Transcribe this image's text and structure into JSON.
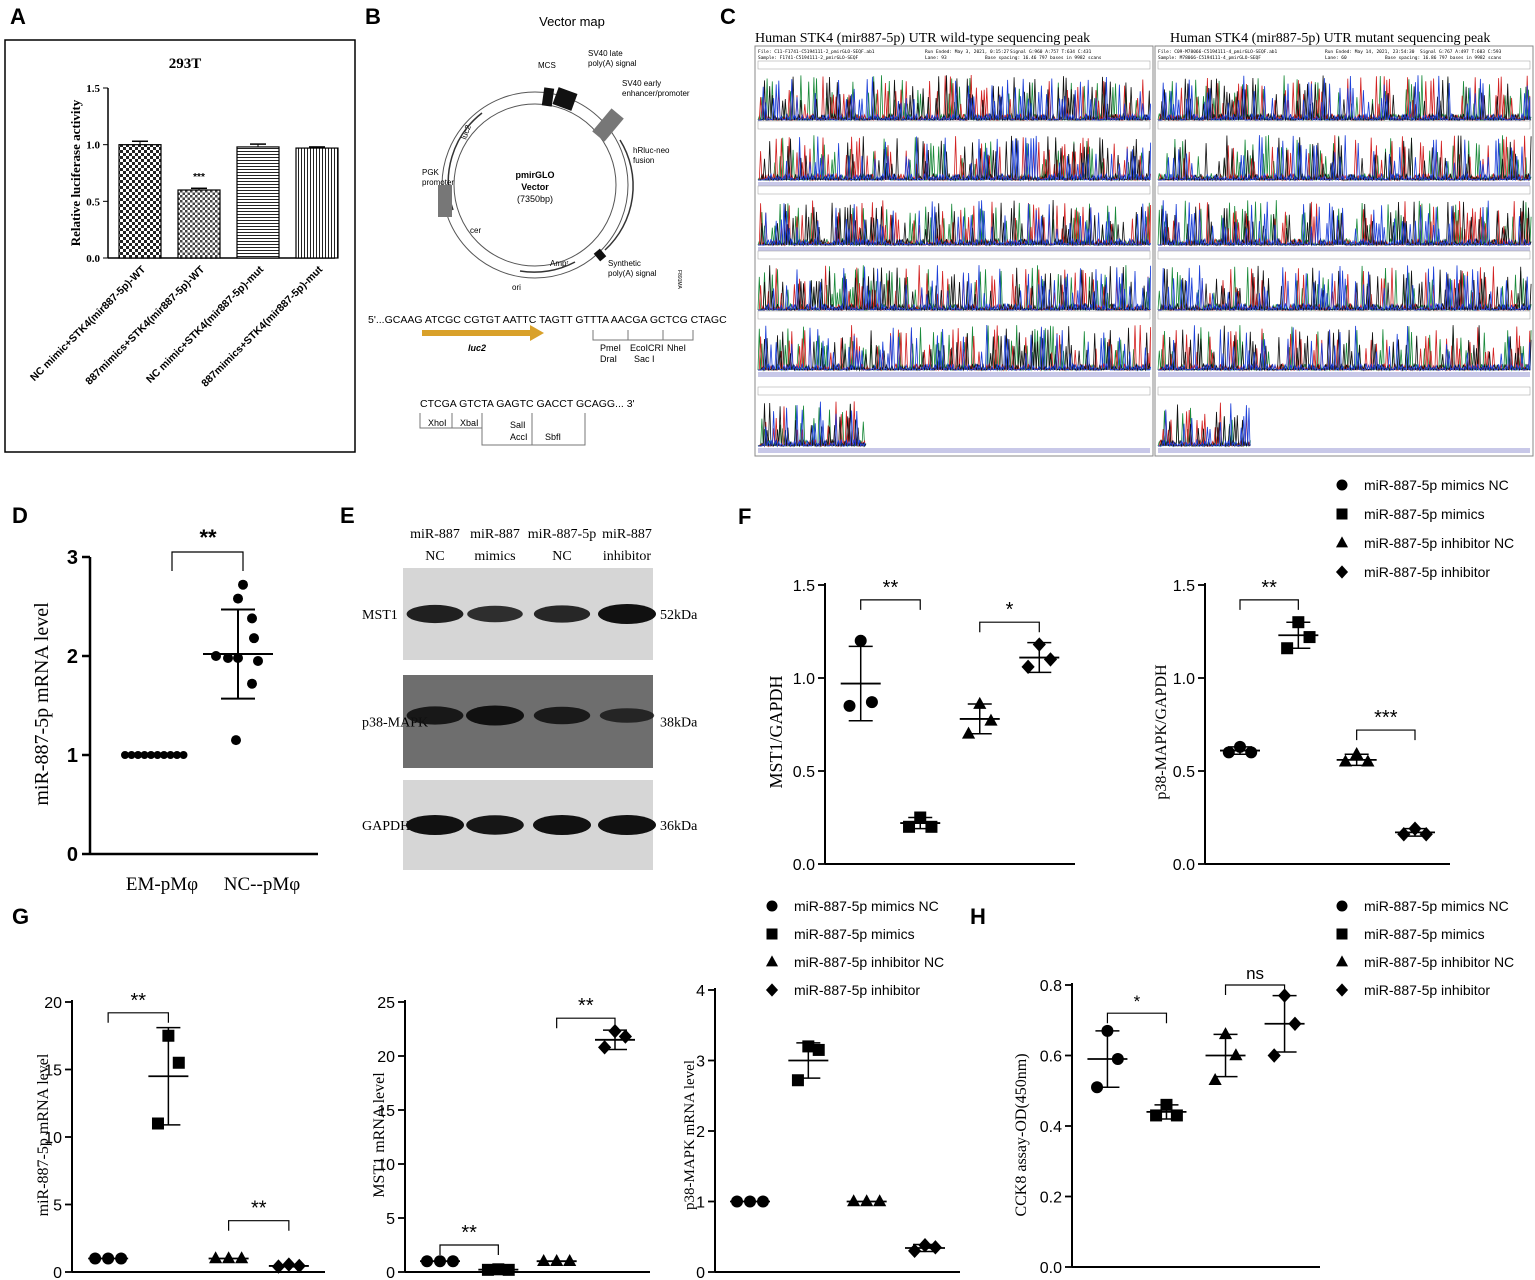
{
  "panels": {
    "A": "A",
    "B": "B",
    "C": "C",
    "D": "D",
    "E": "E",
    "F": "F",
    "G": "G",
    "H": "H"
  },
  "panelA": {
    "chart_data": {
      "type": "bar",
      "title": "293T",
      "ylabel": "Relative luciferase activity",
      "categories": [
        "NC mimic+STK4(mir887-5p)-WT",
        "887mimics+STK4(mir887-5p)-WT",
        "NC mimic+STK4(mir887-5p)-mut",
        "887mimics+STK4(mir887-5p)-mut"
      ],
      "values": [
        1.0,
        0.6,
        0.98,
        0.97
      ],
      "errors": [
        0.03,
        0.015,
        0.025,
        0.01
      ],
      "ylim": [
        0,
        1.5
      ],
      "yticks": [
        "0.0",
        "0.5",
        "1.0",
        "1.5"
      ],
      "annotation": "***"
    }
  },
  "panelB": {
    "title": "Vector map",
    "vector_name": "pmirGLO",
    "vector_name2": "Vector",
    "vector_size": "(7350bp)",
    "features": {
      "mcs": "MCS",
      "sv40late": "SV40 late",
      "sv40late2": "poly(A) signal",
      "sv40early": "SV40 early",
      "sv40early2": "enhancer/promoter",
      "hluc": "hRluc-neo",
      "hluc2": "fusion",
      "synth": "Synthetic",
      "synth2": "poly(A) signal",
      "ampr": "Ampʳ",
      "ori": "ori",
      "cer": "cer",
      "pgk": "PGK",
      "pgk2": "promoter",
      "luc2": "luc2",
      "code": "F891MA"
    },
    "seq1": "5'...GCAAG ATCGC CGTGT AATTC TAGTT GTTTA AACGA GCTCG CTAGC",
    "luc2_arrow": "luc2",
    "site1": [
      "PmeI",
      "DraI"
    ],
    "site2": [
      "EcoICRI",
      "Sac I"
    ],
    "site3": "NheI",
    "seq2": "CTCGA GTCTA GAGTC GACCT GCAGG... 3'",
    "site4": "XhoI",
    "site5": "XbaI",
    "site6": [
      "SalI",
      "AccI"
    ],
    "site7": "SbfI"
  },
  "panelC": {
    "title_wt": "Human STK4 (mir887-5p) UTR wild-type sequencing peak",
    "title_mut": "Human STK4 (mir887-5p) UTR mutant sequencing peak",
    "header_wt": [
      "File: C11-F1741-C5194111-2_pmirGLO-SEQF.ab1",
      "Sample: F1741-C5194111-2_pmirGLO-SEQF",
      "Page 1 of 1"
    ],
    "header_wt_right": [
      "Run Ended: May 3, 2021, 0:15:27",
      "Lane: 93",
      "Base spacing: 16.46  797 bases in 9982 scans"
    ],
    "header_wt_sig": "Signal G:960 A:757 T:634 C:431",
    "header_mut": [
      "File: C09-M78066-C5194111-4_pmirGLO-SEQF.ab1",
      "Sample: M78066-C5194111-4_pmirGLO-SEQF",
      "Page 1 of 1"
    ],
    "header_mut_right": [
      "Run Ended: May 14, 2021, 23:54:30",
      "Lane: 60",
      "Base spacing: 16.86  797 bases in 9982 scans"
    ],
    "header_mut_sig": "Signal G:767 A:497 T:603 C:593"
  },
  "panelD": {
    "chart_data": {
      "type": "scatter",
      "ylabel": "miR-887-5p mRNA level",
      "categories": [
        "EM-pMφ",
        "NC--pMφ"
      ],
      "series": [
        {
          "values": [
            1,
            1,
            1,
            1,
            1,
            1,
            1,
            1,
            1,
            1
          ],
          "mean": 1.0,
          "sd": 0.0
        },
        {
          "values": [
            2.72,
            2.58,
            2.38,
            2.18,
            2.0,
            1.98,
            1.98,
            1.95,
            1.72,
            1.15
          ],
          "mean": 2.02,
          "sd": 0.45
        }
      ],
      "ylim": [
        0,
        3
      ],
      "yticks": [
        "0",
        "1",
        "2",
        "3"
      ],
      "annotation": "**"
    }
  },
  "panelE": {
    "lanes": [
      [
        "miR-887",
        "NC"
      ],
      [
        "miR-887",
        "mimics"
      ],
      [
        "miR-887-5p",
        "NC"
      ],
      [
        "miR-887",
        "inhibitor"
      ]
    ],
    "rows": [
      {
        "label": "MST1",
        "size": "52kDa",
        "intensity": [
          0.85,
          0.7,
          0.78,
          1.0
        ]
      },
      {
        "label": "p38-MAPK",
        "size": "38kDa",
        "intensity": [
          0.85,
          1.0,
          0.8,
          0.55
        ]
      },
      {
        "label": "GAPDH",
        "size": "36kDa",
        "intensity": [
          1.0,
          0.95,
          1.0,
          1.0
        ]
      }
    ]
  },
  "legend": {
    "items": [
      "miR-887-5p mimics NC",
      "miR-887-5p mimics",
      "miR-887-5p inhibitor NC",
      "miR-887-5p inhibitor"
    ]
  },
  "panelF": {
    "chart_data": [
      {
        "type": "scatter",
        "ylabel": "MST1/GAPDH",
        "ylim": [
          0,
          1.5
        ],
        "yticks": [
          "0.0",
          "0.5",
          "1.0",
          "1.5"
        ],
        "series": [
          {
            "name": "miR-887-5p mimics NC",
            "values": [
              1.2,
              0.87,
              0.85
            ],
            "mean": 0.97,
            "sd": 0.2
          },
          {
            "name": "miR-887-5p mimics",
            "values": [
              0.25,
              0.2,
              0.2
            ],
            "mean": 0.22,
            "sd": 0.03
          },
          {
            "name": "miR-887-5p inhibitor NC",
            "values": [
              0.86,
              0.77,
              0.7
            ],
            "mean": 0.78,
            "sd": 0.08
          },
          {
            "name": "miR-887-5p inhibitor",
            "values": [
              1.18,
              1.1,
              1.06
            ],
            "mean": 1.11,
            "sd": 0.08
          }
        ],
        "annotations": [
          "**",
          "*"
        ]
      },
      {
        "type": "scatter",
        "ylabel": "p38-MAPK/GAPDH",
        "ylim": [
          0,
          1.5
        ],
        "yticks": [
          "0.0",
          "0.5",
          "1.0",
          "1.5"
        ],
        "series": [
          {
            "name": "miR-887-5p mimics NC",
            "values": [
              0.63,
              0.6,
              0.6
            ],
            "mean": 0.61,
            "sd": 0.02
          },
          {
            "name": "miR-887-5p mimics",
            "values": [
              1.3,
              1.22,
              1.16
            ],
            "mean": 1.23,
            "sd": 0.07
          },
          {
            "name": "miR-887-5p inhibitor NC",
            "values": [
              0.59,
              0.55,
              0.55
            ],
            "mean": 0.56,
            "sd": 0.03
          },
          {
            "name": "miR-887-5p inhibitor",
            "values": [
              0.19,
              0.16,
              0.16
            ],
            "mean": 0.17,
            "sd": 0.02
          }
        ],
        "annotations": [
          "**",
          "***"
        ]
      }
    ]
  },
  "panelG": {
    "chart_data": [
      {
        "type": "scatter",
        "ylabel": "miR-887-5p mRNA level",
        "ylim": [
          0,
          20
        ],
        "yticks": [
          "0",
          "5",
          "10",
          "15",
          "20"
        ],
        "series": [
          {
            "name": "miR-887-5p mimics NC",
            "values": [
              1,
              1,
              1
            ],
            "mean": 1,
            "sd": 0
          },
          {
            "name": "miR-887-5p mimics",
            "values": [
              17.5,
              15.5,
              11
            ],
            "mean": 14.5,
            "sd": 3.6
          },
          {
            "name": "miR-887-5p inhibitor NC",
            "values": [
              1,
              1,
              1
            ],
            "mean": 1,
            "sd": 0
          },
          {
            "name": "miR-887-5p inhibitor",
            "values": [
              0.55,
              0.45,
              0.4
            ],
            "mean": 0.45,
            "sd": 0.06
          }
        ],
        "annotations": [
          "**",
          "**"
        ]
      },
      {
        "type": "scatter",
        "ylabel": "MST1 mRNA level",
        "ylim": [
          0,
          25
        ],
        "yticks": [
          "0",
          "5",
          "10",
          "15",
          "20",
          "25"
        ],
        "series": [
          {
            "name": "miR-887-5p mimics NC",
            "values": [
              1,
              1,
              1
            ],
            "mean": 1,
            "sd": 0
          },
          {
            "name": "miR-887-5p mimics",
            "values": [
              0.25,
              0.2,
              0.2
            ],
            "mean": 0.22,
            "sd": 0.03
          },
          {
            "name": "miR-887-5p inhibitor NC",
            "values": [
              1,
              1,
              1
            ],
            "mean": 1,
            "sd": 0
          },
          {
            "name": "miR-887-5p inhibitor",
            "values": [
              22.3,
              21.8,
              20.8
            ],
            "mean": 21.5,
            "sd": 0.9
          }
        ],
        "annotations": [
          "**",
          "**"
        ]
      },
      {
        "type": "scatter",
        "ylabel": "p38-MAPK mRNA level",
        "ylim": [
          0,
          4
        ],
        "yticks": [
          "0",
          "1",
          "2",
          "3",
          "4"
        ],
        "series": [
          {
            "name": "miR-887-5p mimics NC",
            "values": [
              1,
              1,
              1
            ],
            "mean": 1,
            "sd": 0
          },
          {
            "name": "miR-887-5p mimics",
            "values": [
              3.2,
              3.15,
              2.72
            ],
            "mean": 3.0,
            "sd": 0.25
          },
          {
            "name": "miR-887-5p inhibitor NC",
            "values": [
              1,
              1,
              1
            ],
            "mean": 1,
            "sd": 0
          },
          {
            "name": "miR-887-5p inhibitor",
            "values": [
              0.38,
              0.35,
              0.3
            ],
            "mean": 0.34,
            "sd": 0.05
          }
        ],
        "annotations": []
      }
    ]
  },
  "panelH": {
    "chart_data": {
      "type": "scatter",
      "ylabel": "CCK8 assay-OD(450nm)",
      "ylim": [
        0,
        0.8
      ],
      "yticks": [
        "0.0",
        "0.2",
        "0.4",
        "0.6",
        "0.8"
      ],
      "series": [
        {
          "name": "miR-887-5p mimics NC",
          "values": [
            0.67,
            0.59,
            0.51
          ],
          "mean": 0.59,
          "sd": 0.08
        },
        {
          "name": "miR-887-5p mimics",
          "values": [
            0.46,
            0.43,
            0.43
          ],
          "mean": 0.44,
          "sd": 0.02
        },
        {
          "name": "miR-887-5p inhibitor NC",
          "values": [
            0.66,
            0.6,
            0.53
          ],
          "mean": 0.6,
          "sd": 0.06
        },
        {
          "name": "miR-887-5p inhibitor",
          "values": [
            0.77,
            0.69,
            0.6
          ],
          "mean": 0.69,
          "sd": 0.08
        }
      ],
      "annotations": [
        "*",
        "ns"
      ]
    }
  }
}
